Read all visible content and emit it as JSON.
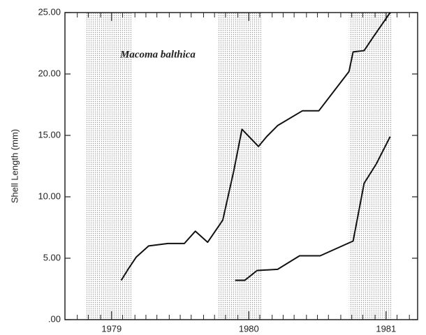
{
  "chart_data": {
    "type": "line",
    "annotation": "Macoma balthica",
    "y_label": "Shell Length (mm)",
    "xlim": [
      1978.66,
      1981.23
    ],
    "xticks": [
      1979,
      1980,
      1981
    ],
    "xminorticks": [
      1978.75,
      1978.83,
      1978.92,
      1979.08,
      1979.17,
      1979.25,
      1979.33,
      1979.42,
      1979.5,
      1979.58,
      1979.67,
      1979.75,
      1979.83,
      1979.92,
      1980.08,
      1980.17,
      1980.25,
      1980.33,
      1980.42,
      1980.5,
      1980.58,
      1980.67,
      1980.75,
      1980.83,
      1980.92,
      1981.08,
      1981.17
    ],
    "ylim": [
      0,
      25
    ],
    "yticks": [
      {
        "value": 0,
        "label": ".00"
      },
      {
        "value": 5,
        "label": "5.00"
      },
      {
        "value": 10,
        "label": "10.00"
      },
      {
        "value": 15,
        "label": "15.00"
      },
      {
        "value": 20,
        "label": "20.00"
      },
      {
        "value": 25,
        "label": "25.00"
      }
    ],
    "shaded_periods": [
      [
        1978.81,
        1979.15
      ],
      [
        1979.77,
        1980.09
      ],
      [
        1980.73,
        1981.04
      ]
    ],
    "series": [
      {
        "color": "#111111",
        "x": [
          1979.07,
          1979.12,
          1979.18,
          1979.27,
          1979.41,
          1979.53,
          1979.61,
          1979.7,
          1979.81,
          1979.89,
          1979.95,
          1980.07,
          1980.13,
          1980.21,
          1980.39,
          1980.51,
          1980.73,
          1980.76,
          1980.84,
          1980.9,
          1981.03
        ],
        "values": [
          3.2,
          4.1,
          5.1,
          6.0,
          6.2,
          6.2,
          7.2,
          6.3,
          8.1,
          12.1,
          15.5,
          14.1,
          14.9,
          15.8,
          17.0,
          17.0,
          20.2,
          21.8,
          21.9,
          22.9,
          25.0
        ]
      },
      {
        "color": "#111111",
        "x": [
          1979.9,
          1979.97,
          1980.06,
          1980.21,
          1980.37,
          1980.52,
          1980.72,
          1980.76,
          1980.84,
          1980.93,
          1981.03
        ],
        "values": [
          3.2,
          3.2,
          4.0,
          4.1,
          5.2,
          5.2,
          6.2,
          6.4,
          11.1,
          12.7,
          14.9
        ]
      }
    ]
  }
}
